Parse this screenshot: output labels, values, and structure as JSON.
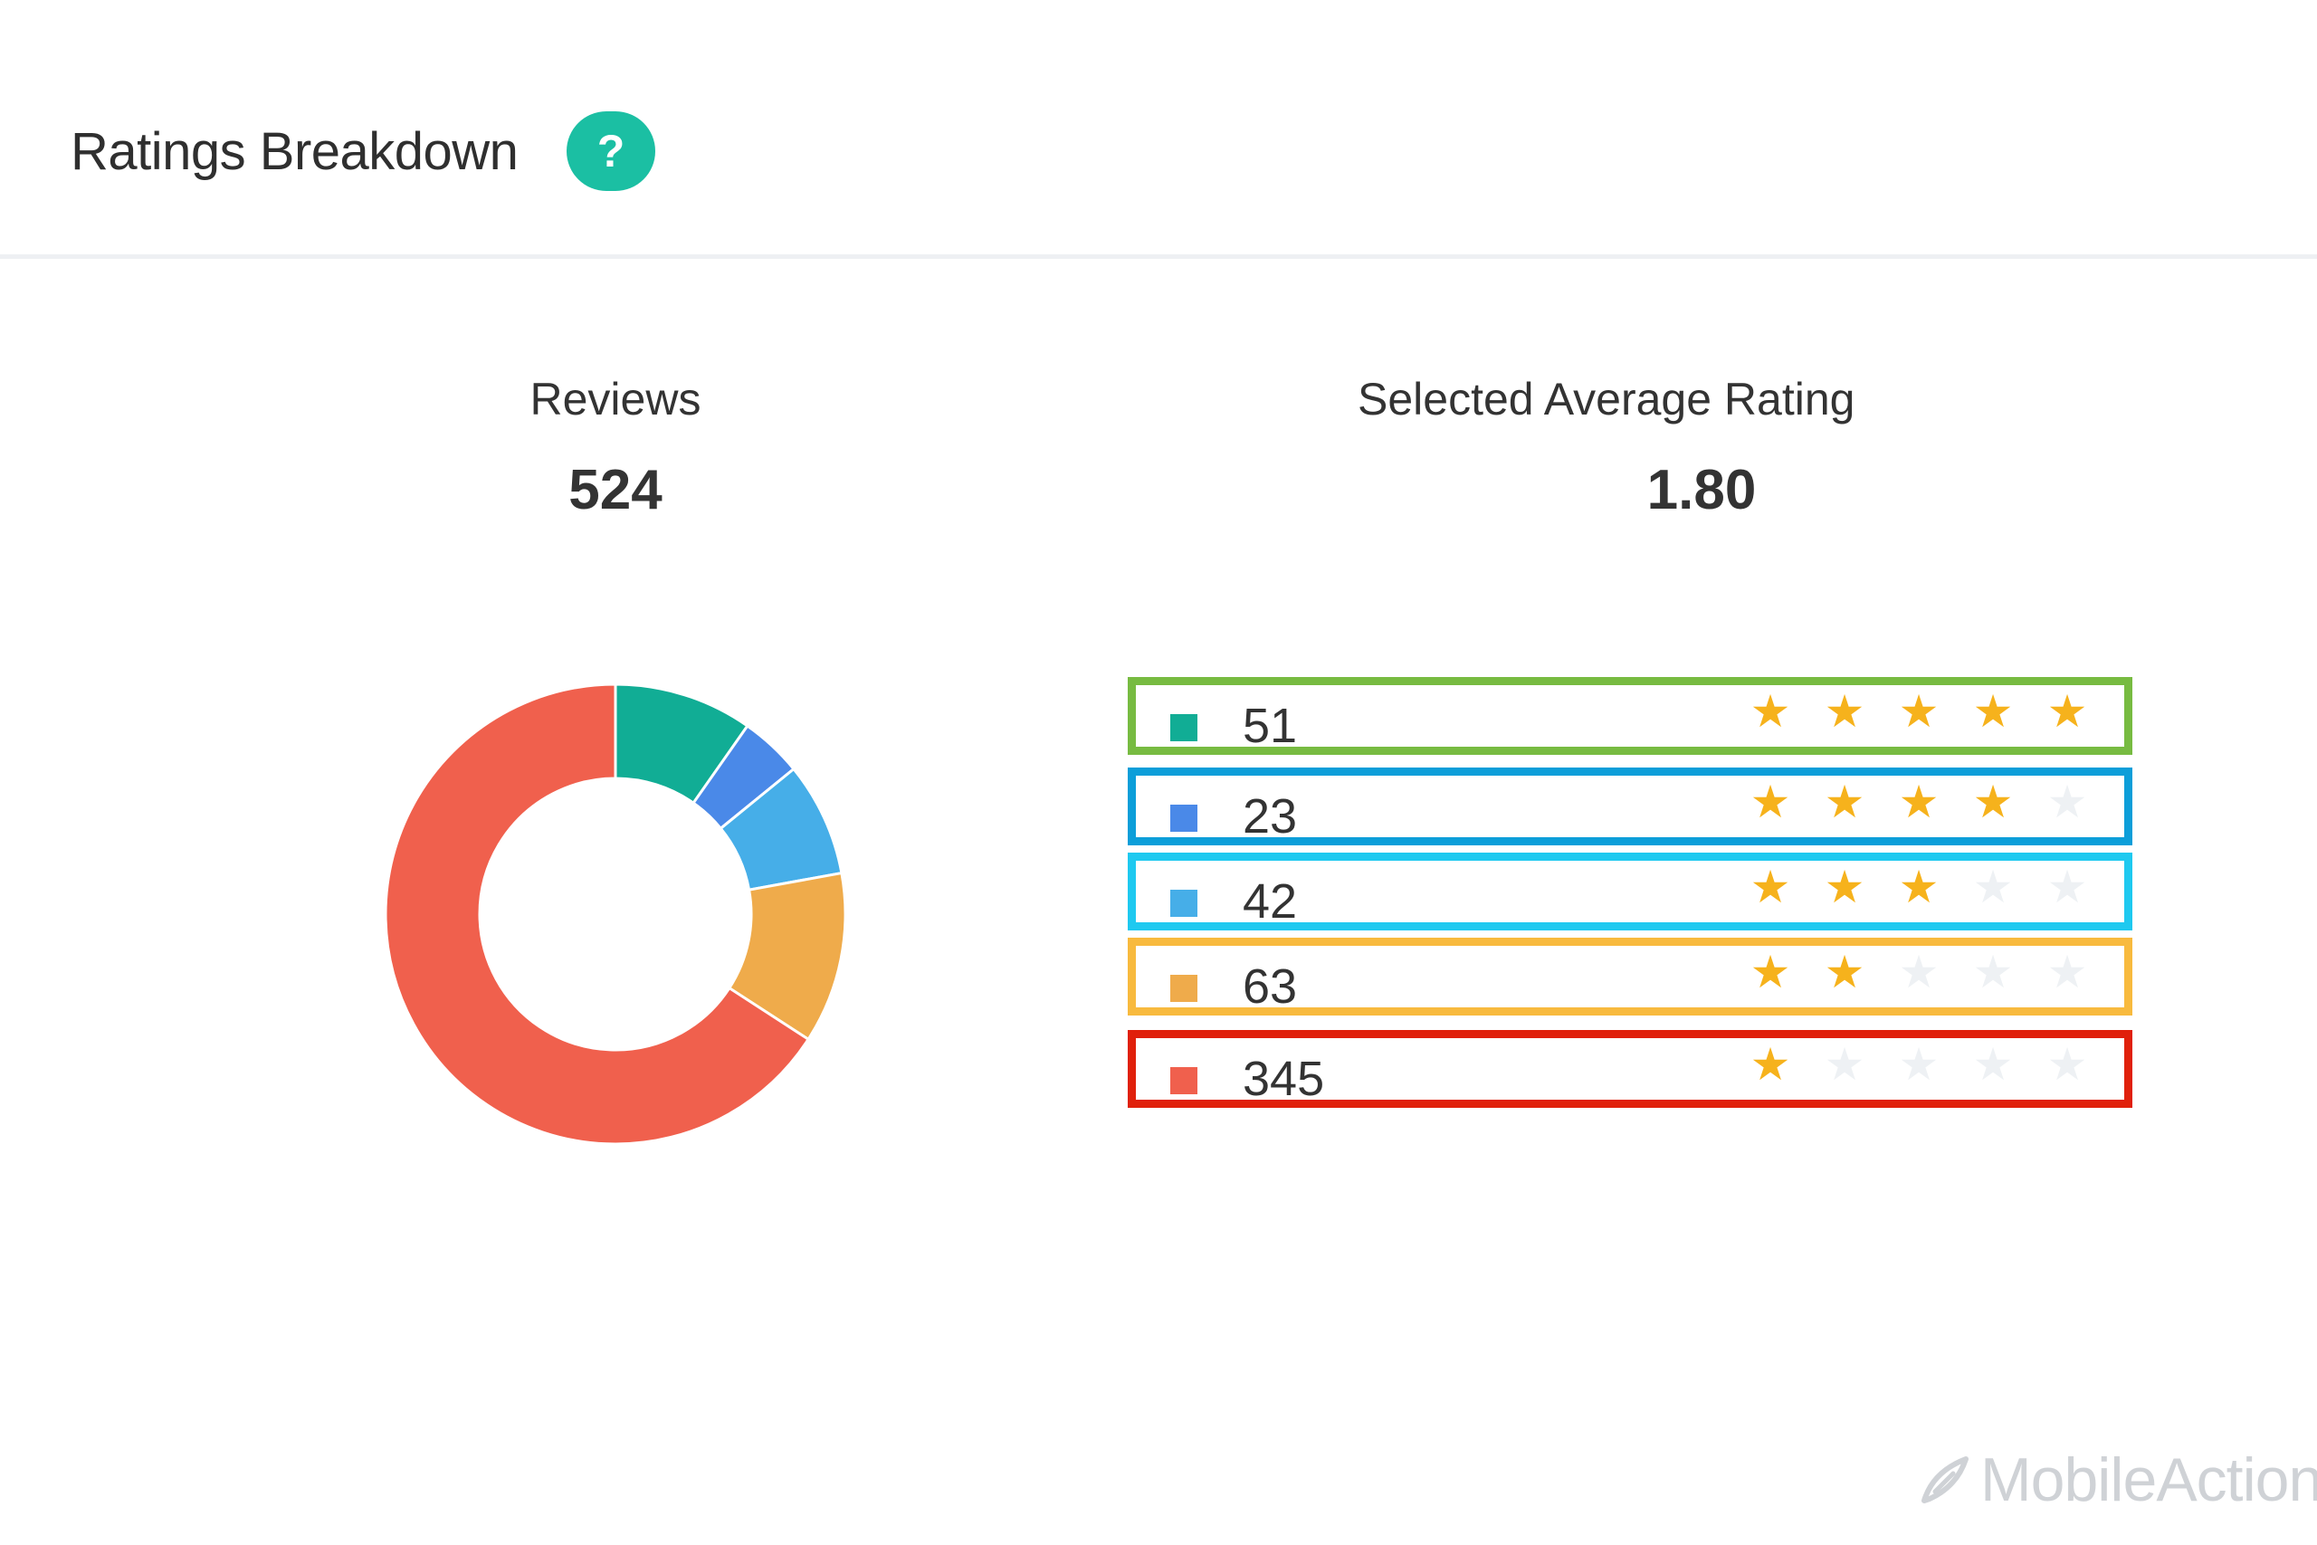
{
  "panel": {
    "title": "Ratings Breakdown",
    "help_icon": "question-circle-icon",
    "help_symbol": "?"
  },
  "stats": {
    "reviews_label": "Reviews",
    "reviews_value": "524",
    "average_label": "Selected Average Rating",
    "average_value": "1.80"
  },
  "chart_data": {
    "type": "pie",
    "donut": true,
    "categories": [
      "5 stars",
      "4 stars",
      "3 stars",
      "2 stars",
      "1 star"
    ],
    "values": [
      51,
      23,
      42,
      63,
      345
    ],
    "colors": [
      "#11ad95",
      "#4a89e8",
      "#46aee8",
      "#efab4b",
      "#f0604d"
    ],
    "total": 524
  },
  "rows": [
    {
      "count": "51",
      "stars": 5,
      "swatch": "#11ad95",
      "outline": "#77bb41"
    },
    {
      "count": "23",
      "stars": 4,
      "swatch": "#4a89e8",
      "outline": "#0c9ed9"
    },
    {
      "count": "42",
      "stars": 3,
      "swatch": "#46aee8",
      "outline": "#1ec9f0"
    },
    {
      "count": "63",
      "stars": 2,
      "swatch": "#efab4b",
      "outline": "#f8ba3e"
    },
    {
      "count": "345",
      "stars": 1,
      "swatch": "#f0604d",
      "outline": "#e0200b"
    }
  ],
  "star_icon": "star-icon",
  "star_glyph": "★",
  "brand": {
    "name": "MobileAction",
    "icon": "mobileaction-logo-icon"
  }
}
